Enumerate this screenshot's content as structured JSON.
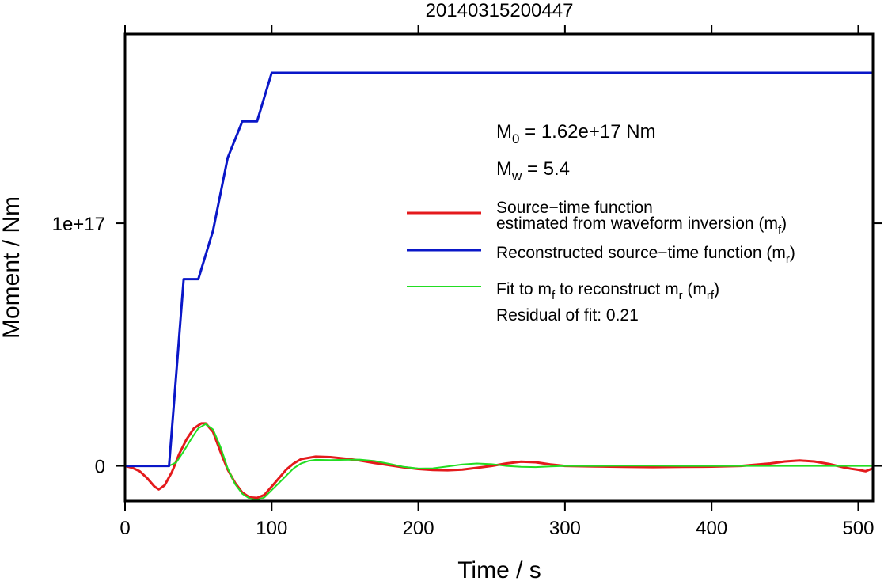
{
  "chart_data": {
    "type": "line",
    "title": "20140315200447",
    "xlabel": "Time / s",
    "ylabel": "Moment / Nm",
    "xlim": [
      0,
      510
    ],
    "ylim": [
      -1.45e+16,
      1.78e+17
    ],
    "x_ticks": [
      {
        "value": 0,
        "label": "0"
      },
      {
        "value": 100,
        "label": "100"
      },
      {
        "value": 200,
        "label": "200"
      },
      {
        "value": 300,
        "label": "300"
      },
      {
        "value": 400,
        "label": "400"
      },
      {
        "value": 500,
        "label": "500"
      }
    ],
    "y_ticks": [
      {
        "value": 0,
        "label": "0"
      },
      {
        "value": 1e+17,
        "label": "1e+17"
      }
    ],
    "grid": false,
    "annotations": {
      "m0": {
        "pre": "M",
        "sub": "0",
        "post": " = 1.62e+17 Nm"
      },
      "mw": {
        "pre": "M",
        "sub": "w",
        "post": " = 5.4"
      },
      "residual": "Residual of fit: 0.21"
    },
    "legend": {
      "placement": "right",
      "entries": [
        {
          "line1": "Source−time function",
          "pre": "estimated from waveform inversion (m",
          "sub": "f",
          "post": ")",
          "color": "#e41a1c"
        },
        {
          "pre": "Reconstructed source−time function (m",
          "sub": "r",
          "post": ")",
          "color": "#0a17c8"
        },
        {
          "pre": "Fit to m",
          "sub": "f",
          "mid": " to reconstruct m",
          "sub2": "r",
          "mid2": " (m",
          "sub3": "rf",
          "post": ")",
          "color": "#22dd22"
        }
      ]
    },
    "series": [
      {
        "name": "Reconstructed source−time function (mr)",
        "color": "#0a17c8",
        "x": [
          0,
          30,
          40,
          50,
          60,
          70,
          80,
          90,
          100,
          510
        ],
        "y": [
          0,
          0,
          7.7e+16,
          7.7e+16,
          9.7e+16,
          1.27e+17,
          1.42e+17,
          1.42e+17,
          1.62e+17,
          1.62e+17
        ]
      },
      {
        "name": "Source-time function estimated from waveform inversion (mf)",
        "color": "#e41a1c",
        "x": [
          0,
          5,
          10,
          15,
          20,
          23,
          27,
          32,
          37,
          42,
          47,
          52,
          55,
          60,
          65,
          70,
          75,
          80,
          85,
          90,
          95,
          100,
          105,
          110,
          115,
          120,
          130,
          140,
          150,
          160,
          170,
          180,
          190,
          200,
          210,
          220,
          230,
          240,
          250,
          260,
          270,
          280,
          290,
          300,
          320,
          340,
          360,
          380,
          400,
          420,
          440,
          450,
          460,
          470,
          480,
          490,
          495,
          500,
          505,
          510
        ],
        "y": [
          0,
          -800000000000000.0,
          -2200000000000000.0,
          -5000000000000000.0,
          -8500000000000000.0,
          -9700000000000000.0,
          -8000000000000000.0,
          -2500000000000000.0,
          5000000000000000.0,
          1.1e+16,
          1.55e+16,
          1.75e+16,
          1.75e+16,
          1.4e+16,
          6000000000000000.0,
          -1500000000000000.0,
          -7000000000000000.0,
          -1.1e+16,
          -1.3e+16,
          -1.32e+16,
          -1.2e+16,
          -8500000000000000.0,
          -5000000000000000.0,
          -1500000000000000.0,
          1000000000000000.0,
          2800000000000000.0,
          3800000000000000.0,
          3600000000000000.0,
          3000000000000000.0,
          2200000000000000.0,
          1200000000000000.0,
          300000000000000.0,
          -600000000000000.0,
          -1300000000000000.0,
          -1700000000000000.0,
          -1800000000000000.0,
          -1500000000000000.0,
          -800000000000000.0,
          0,
          1000000000000000.0,
          1700000000000000.0,
          1500000000000000.0,
          600000000000000.0,
          0,
          -200000000000000.0,
          -400000000000000.0,
          -500000000000000.0,
          -400000000000000.0,
          -300000000000000.0,
          0,
          1000000000000000.0,
          1800000000000000.0,
          2200000000000000.0,
          1800000000000000.0,
          800000000000000.0,
          -600000000000000.0,
          -1200000000000000.0,
          -1600000000000000.0,
          -2200000000000000.0,
          -1000000000000000.0
        ]
      },
      {
        "name": "Fit to mf to reconstruct mr (mrf)",
        "color": "#22dd22",
        "x": [
          0,
          10,
          20,
          25,
          30,
          35,
          40,
          45,
          50,
          55,
          60,
          65,
          70,
          75,
          80,
          85,
          90,
          95,
          100,
          105,
          110,
          115,
          120,
          125,
          130,
          140,
          150,
          160,
          170,
          180,
          190,
          200,
          210,
          220,
          230,
          240,
          250,
          260,
          270,
          280,
          290,
          300,
          320,
          340,
          360,
          380,
          400,
          420,
          440,
          460,
          480,
          500,
          510
        ],
        "y": [
          0,
          0,
          0,
          0,
          0,
          1500000000000000.0,
          6000000000000000.0,
          1.1e+16,
          1.55e+16,
          1.72e+16,
          1.5e+16,
          8000000000000000.0,
          -1000000000000000.0,
          -7500000000000000.0,
          -1.15e+16,
          -1.35e+16,
          -1.4e+16,
          -1.3e+16,
          -1e+16,
          -7000000000000000.0,
          -4000000000000000.0,
          -1000000000000000.0,
          1000000000000000.0,
          2000000000000000.0,
          2500000000000000.0,
          2400000000000000.0,
          2500000000000000.0,
          2600000000000000.0,
          2000000000000000.0,
          900000000000000.0,
          -400000000000000.0,
          -1100000000000000.0,
          -1000000000000000.0,
          -200000000000000.0,
          600000000000000.0,
          1000000000000000.0,
          700000000000000.0,
          0,
          -400000000000000.0,
          -500000000000000.0,
          -200000000000000.0,
          0,
          0,
          100000000000000.0,
          100000000000000.0,
          0,
          0,
          0,
          0,
          0,
          0,
          0,
          0
        ]
      }
    ]
  }
}
